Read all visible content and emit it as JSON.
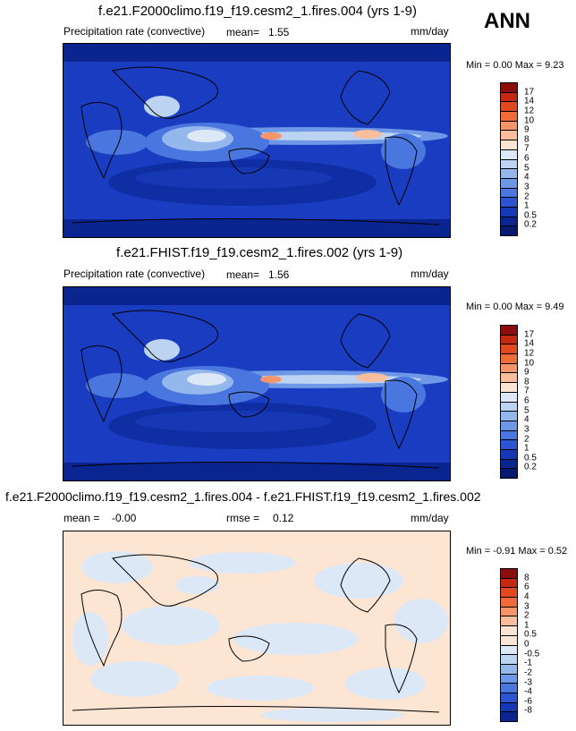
{
  "season": "ANN",
  "panels": [
    {
      "title": "f.e21.F2000climo.f19_f19.cesm2_1.fires.004 (yrs 1-9)",
      "variable": "Precipitation rate (convective)",
      "mean_label": "mean=",
      "mean_value": "1.55",
      "units": "mm/day",
      "min_label": "Min =",
      "min_value": "0.00",
      "max_label": "Max =",
      "max_value": "9.23",
      "colorbar_labels": [
        "17",
        "14",
        "12",
        "10",
        "9",
        "8",
        "7",
        "6",
        "5",
        "4",
        "3",
        "2",
        "1",
        "0.5",
        "0.2"
      ],
      "colorbar_colors": [
        "#8c0d0d",
        "#c42a12",
        "#e04a1e",
        "#ee6c3a",
        "#f6946a",
        "#fbbe9c",
        "#fde5d4",
        "#dde8f6",
        "#bcd3f1",
        "#94b7ec",
        "#6e98e6",
        "#4a76e0",
        "#2d55d2",
        "#1638b4",
        "#0a2490",
        "#071a70"
      ]
    },
    {
      "title": "f.e21.FHIST.f19_f19.cesm2_1.fires.002 (yrs 1-9)",
      "variable": "Precipitation rate (convective)",
      "mean_label": "mean=",
      "mean_value": "1.56",
      "units": "mm/day",
      "min_label": "Min =",
      "min_value": "0.00",
      "max_label": "Max =",
      "max_value": "9.49",
      "colorbar_labels": [
        "17",
        "14",
        "12",
        "10",
        "9",
        "8",
        "7",
        "6",
        "5",
        "4",
        "3",
        "2",
        "1",
        "0.5",
        "0.2"
      ],
      "colorbar_colors": [
        "#8c0d0d",
        "#c42a12",
        "#e04a1e",
        "#ee6c3a",
        "#f6946a",
        "#fbbe9c",
        "#fde5d4",
        "#dde8f6",
        "#bcd3f1",
        "#94b7ec",
        "#6e98e6",
        "#4a76e0",
        "#2d55d2",
        "#1638b4",
        "#0a2490",
        "#071a70"
      ]
    },
    {
      "title": "f.e21.F2000climo.f19_f19.cesm2_1.fires.004 - f.e21.FHIST.f19_f19.cesm2_1.fires.002",
      "mean_label": "mean =",
      "mean_value": "-0.00",
      "rmse_label": "rmse =",
      "rmse_value": "0.12",
      "units": "mm/day",
      "min_label": "Min =",
      "min_value": "-0.91",
      "max_label": "Max =",
      "max_value": "0.52",
      "colorbar_labels": [
        "8",
        "6",
        "4",
        "3",
        "2",
        "1",
        "0.5",
        "0",
        "-0.5",
        "-1",
        "-2",
        "-3",
        "-4",
        "-6",
        "-8"
      ],
      "colorbar_colors": [
        "#8c0d0d",
        "#c42a12",
        "#e04a1e",
        "#ee6c3a",
        "#f6946a",
        "#fbbe9c",
        "#fde5d4",
        "#fde5d4",
        "#dde8f6",
        "#bcd3f1",
        "#94b7ec",
        "#6e98e6",
        "#4a76e0",
        "#2d55d2",
        "#1638b4",
        "#0a2490"
      ]
    }
  ]
}
